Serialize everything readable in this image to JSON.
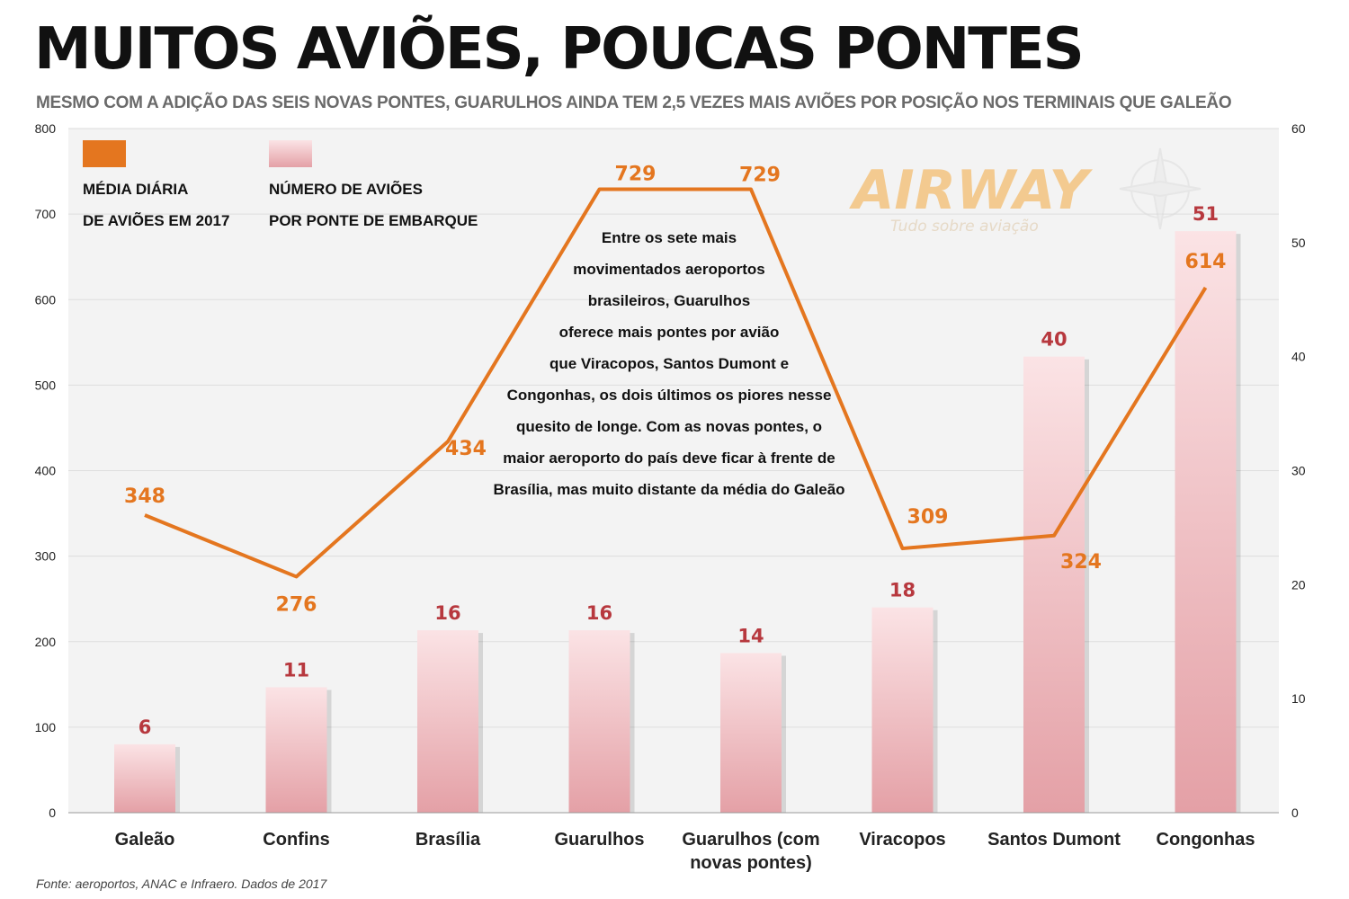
{
  "title": "MUITOS AVIÕES, POUCAS PONTES",
  "subtitle": "MESMO COM A ADIÇÃO DAS SEIS NOVAS PONTES, GUARULHOS AINDA TEM 2,5 VEZES MAIS AVIÕES POR POSIÇÃO NOS TERMINAIS QUE GALEÃO",
  "source": "Fonte: aeroportos, ANAC e Infraero. Dados de 2017",
  "watermark": {
    "name": "AIRWAY",
    "tagline": "Tudo sobre aviação"
  },
  "annotation": [
    "Entre os sete mais",
    "movimentados aeroportos",
    "brasileiros, Guarulhos",
    "oferece mais pontes por avião",
    "que Viracopos, Santos Dumont e",
    "Congonhas, os dois últimos os piores nesse",
    "quesito de longe. Com as novas pontes, o",
    "maior aeroporto do país deve ficar à frente de",
    "Brasília, mas muito distante da média do Galeão"
  ],
  "colors": {
    "line": "#e4761f",
    "bar_top": "#fbe3e5",
    "bar_bottom": "#e4a0a6",
    "bar_label": "#b7383e",
    "plot_bg": "#f3f3f3"
  },
  "chart_data": {
    "type": "bar",
    "categories": [
      "Galeão",
      "Confins",
      "Brasília",
      "Guarulhos",
      "Guarulhos (com novas pontes)",
      "Viracopos",
      "Santos Dumont",
      "Congonhas"
    ],
    "series": [
      {
        "name": "MÉDIA DIÁRIA DE AVIÕES EM 2017",
        "type": "line",
        "axis": "left",
        "values": [
          348,
          276,
          434,
          729,
          729,
          309,
          324,
          614
        ]
      },
      {
        "name": "NÚMERO DE AVIÕES POR PONTE DE EMBARQUE",
        "type": "bar",
        "axis": "right",
        "values": [
          6,
          11,
          16,
          16,
          14,
          18,
          40,
          51
        ]
      }
    ],
    "ylim_left": [
      0,
      800
    ],
    "yticks_left": [
      0,
      100,
      200,
      300,
      400,
      500,
      600,
      700,
      800
    ],
    "ylim_right": [
      0,
      60
    ],
    "yticks_right": [
      0,
      10,
      20,
      30,
      40,
      50,
      60
    ],
    "grid": true,
    "legend": "top-left"
  }
}
